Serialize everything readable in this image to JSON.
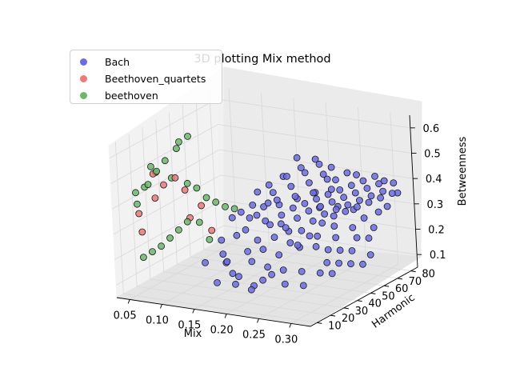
{
  "chart_data": {
    "type": "scatter",
    "title": "3D plotting Mix method",
    "xlabel": "Mix",
    "ylabel": "Harmonic",
    "zlabel": "Betweenness",
    "xlim": [
      0.03,
      0.33
    ],
    "ylim": [
      5,
      85
    ],
    "zlim": [
      0.05,
      0.65
    ],
    "xticks": [
      "0.05",
      "0.10",
      "0.15",
      "0.20",
      "0.25",
      "0.30"
    ],
    "yticks": [
      "10",
      "20",
      "30",
      "40",
      "50",
      "60",
      "70",
      "80"
    ],
    "zticks": [
      "0.1",
      "0.2",
      "0.3",
      "0.4",
      "0.5",
      "0.6"
    ],
    "legend_position": "top-left",
    "series": [
      {
        "name": "Bach",
        "color": "#6b6be8",
        "points": [
          [
            0.16,
            18,
            0.12
          ],
          [
            0.18,
            22,
            0.11
          ],
          [
            0.19,
            20,
            0.15
          ],
          [
            0.17,
            25,
            0.14
          ],
          [
            0.2,
            26,
            0.1
          ],
          [
            0.21,
            28,
            0.12
          ],
          [
            0.15,
            30,
            0.16
          ],
          [
            0.22,
            30,
            0.14
          ],
          [
            0.18,
            32,
            0.21
          ],
          [
            0.2,
            34,
            0.22
          ],
          [
            0.22,
            36,
            0.2
          ],
          [
            0.19,
            35,
            0.25
          ],
          [
            0.21,
            38,
            0.26
          ],
          [
            0.23,
            40,
            0.24
          ],
          [
            0.24,
            42,
            0.22
          ],
          [
            0.2,
            40,
            0.3
          ],
          [
            0.22,
            42,
            0.29
          ],
          [
            0.24,
            44,
            0.28
          ],
          [
            0.25,
            45,
            0.26
          ],
          [
            0.21,
            44,
            0.33
          ],
          [
            0.23,
            46,
            0.32
          ],
          [
            0.25,
            48,
            0.31
          ],
          [
            0.26,
            50,
            0.3
          ],
          [
            0.22,
            48,
            0.35
          ],
          [
            0.24,
            50,
            0.34
          ],
          [
            0.26,
            52,
            0.33
          ],
          [
            0.27,
            54,
            0.32
          ],
          [
            0.23,
            52,
            0.36
          ],
          [
            0.25,
            54,
            0.35
          ],
          [
            0.27,
            56,
            0.34
          ],
          [
            0.28,
            58,
            0.33
          ],
          [
            0.24,
            56,
            0.37
          ],
          [
            0.26,
            58,
            0.36
          ],
          [
            0.28,
            60,
            0.35
          ],
          [
            0.29,
            62,
            0.34
          ],
          [
            0.25,
            60,
            0.38
          ],
          [
            0.27,
            62,
            0.37
          ],
          [
            0.29,
            64,
            0.36
          ],
          [
            0.3,
            66,
            0.35
          ],
          [
            0.26,
            64,
            0.39
          ],
          [
            0.28,
            66,
            0.38
          ],
          [
            0.3,
            68,
            0.37
          ],
          [
            0.31,
            70,
            0.36
          ],
          [
            0.27,
            68,
            0.4
          ],
          [
            0.29,
            70,
            0.39
          ],
          [
            0.31,
            72,
            0.38
          ],
          [
            0.32,
            74,
            0.37
          ],
          [
            0.28,
            72,
            0.41
          ],
          [
            0.3,
            74,
            0.4
          ],
          [
            0.2,
            46,
            0.38
          ],
          [
            0.22,
            50,
            0.39
          ],
          [
            0.24,
            54,
            0.4
          ],
          [
            0.26,
            58,
            0.41
          ],
          [
            0.21,
            52,
            0.42
          ],
          [
            0.23,
            56,
            0.43
          ],
          [
            0.25,
            60,
            0.44
          ],
          [
            0.19,
            48,
            0.4
          ],
          [
            0.2,
            54,
            0.45
          ],
          [
            0.22,
            58,
            0.46
          ],
          [
            0.24,
            62,
            0.45
          ],
          [
            0.25,
            36,
            0.25
          ],
          [
            0.27,
            40,
            0.24
          ],
          [
            0.28,
            44,
            0.22
          ],
          [
            0.29,
            48,
            0.21
          ],
          [
            0.3,
            52,
            0.2
          ],
          [
            0.26,
            46,
            0.26
          ],
          [
            0.28,
            50,
            0.25
          ],
          [
            0.3,
            56,
            0.24
          ],
          [
            0.31,
            60,
            0.23
          ],
          [
            0.27,
            54,
            0.28
          ],
          [
            0.29,
            58,
            0.27
          ],
          [
            0.31,
            64,
            0.26
          ],
          [
            0.3,
            42,
            0.18
          ],
          [
            0.31,
            46,
            0.17
          ],
          [
            0.32,
            50,
            0.16
          ],
          [
            0.29,
            38,
            0.19
          ],
          [
            0.32,
            56,
            0.18
          ],
          [
            0.18,
            40,
            0.33
          ],
          [
            0.17,
            42,
            0.36
          ],
          [
            0.19,
            44,
            0.37
          ],
          [
            0.16,
            38,
            0.34
          ],
          [
            0.15,
            36,
            0.32
          ],
          [
            0.17,
            46,
            0.4
          ],
          [
            0.18,
            50,
            0.42
          ],
          [
            0.19,
            56,
            0.44
          ],
          [
            0.21,
            60,
            0.47
          ],
          [
            0.23,
            64,
            0.48
          ],
          [
            0.2,
            62,
            0.5
          ],
          [
            0.22,
            66,
            0.49
          ],
          [
            0.24,
            68,
            0.46
          ],
          [
            0.26,
            70,
            0.44
          ],
          [
            0.25,
            66,
            0.42
          ],
          [
            0.27,
            72,
            0.43
          ],
          [
            0.29,
            76,
            0.42
          ],
          [
            0.3,
            78,
            0.4
          ],
          [
            0.31,
            80,
            0.39
          ],
          [
            0.32,
            78,
            0.36
          ],
          [
            0.32,
            70,
            0.33
          ],
          [
            0.31,
            68,
            0.31
          ],
          [
            0.3,
            62,
            0.3
          ],
          [
            0.28,
            64,
            0.32
          ],
          [
            0.26,
            62,
            0.33
          ],
          [
            0.24,
            58,
            0.33
          ],
          [
            0.23,
            60,
            0.38
          ],
          [
            0.21,
            56,
            0.36
          ],
          [
            0.19,
            52,
            0.34
          ],
          [
            0.17,
            50,
            0.33
          ],
          [
            0.16,
            44,
            0.3
          ],
          [
            0.18,
            46,
            0.29
          ],
          [
            0.2,
            48,
            0.28
          ],
          [
            0.22,
            44,
            0.27
          ],
          [
            0.14,
            32,
            0.24
          ],
          [
            0.16,
            34,
            0.26
          ],
          [
            0.17,
            36,
            0.28
          ],
          [
            0.15,
            28,
            0.2
          ],
          [
            0.16,
            26,
            0.18
          ],
          [
            0.13,
            24,
            0.17
          ],
          [
            0.19,
            30,
            0.18
          ],
          [
            0.21,
            32,
            0.16
          ],
          [
            0.23,
            34,
            0.15
          ],
          [
            0.25,
            38,
            0.14
          ],
          [
            0.27,
            42,
            0.13
          ],
          [
            0.28,
            46,
            0.12
          ],
          [
            0.24,
            30,
            0.11
          ],
          [
            0.26,
            34,
            0.1
          ],
          [
            0.2,
            24,
            0.09
          ]
        ]
      },
      {
        "name": "Beethoven_quartets",
        "color": "#f07878",
        "points": [
          [
            0.06,
            12,
            0.3
          ],
          [
            0.05,
            15,
            0.36
          ],
          [
            0.07,
            18,
            0.42
          ],
          [
            0.08,
            20,
            0.47
          ],
          [
            0.06,
            22,
            0.5
          ],
          [
            0.09,
            24,
            0.49
          ],
          [
            0.1,
            26,
            0.44
          ],
          [
            0.12,
            28,
            0.38
          ],
          [
            0.11,
            24,
            0.34
          ],
          [
            0.13,
            30,
            0.28
          ]
        ]
      },
      {
        "name": "beethoven",
        "color": "#6ab86a",
        "points": [
          [
            0.05,
            14,
            0.4
          ],
          [
            0.06,
            18,
            0.47
          ],
          [
            0.07,
            20,
            0.52
          ],
          [
            0.08,
            22,
            0.56
          ],
          [
            0.09,
            26,
            0.6
          ],
          [
            0.1,
            30,
            0.64
          ],
          [
            0.09,
            28,
            0.62
          ],
          [
            0.07,
            16,
            0.55
          ],
          [
            0.06,
            24,
            0.5
          ],
          [
            0.08,
            26,
            0.48
          ],
          [
            0.1,
            28,
            0.46
          ],
          [
            0.11,
            30,
            0.44
          ],
          [
            0.05,
            20,
            0.45
          ],
          [
            0.04,
            18,
            0.43
          ],
          [
            0.12,
            32,
            0.4
          ],
          [
            0.13,
            34,
            0.38
          ],
          [
            0.14,
            36,
            0.36
          ],
          [
            0.15,
            38,
            0.35
          ],
          [
            0.11,
            22,
            0.33
          ],
          [
            0.12,
            26,
            0.32
          ],
          [
            0.1,
            20,
            0.3
          ],
          [
            0.09,
            18,
            0.27
          ],
          [
            0.08,
            16,
            0.24
          ],
          [
            0.07,
            14,
            0.22
          ],
          [
            0.06,
            12,
            0.2
          ],
          [
            0.13,
            28,
            0.25
          ]
        ]
      }
    ]
  }
}
